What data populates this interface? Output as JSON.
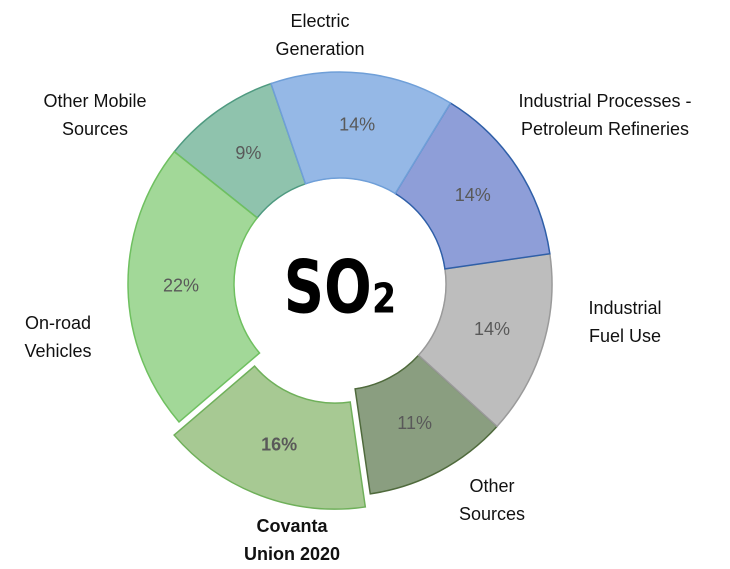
{
  "chart_data": {
    "type": "donut",
    "center_label": "SO₂",
    "categories": [
      "Electric Generation",
      "Industrial Processes - Petroleum Refineries",
      "Industrial Fuel Use",
      "Other Sources",
      "Covanta Union 2020",
      "On-road Vehicles",
      "Other Mobile Sources"
    ],
    "values": [
      14,
      14,
      14,
      11,
      16,
      22,
      9
    ],
    "value_labels": [
      "14%",
      "14%",
      "14%",
      "11%",
      "16%",
      "22%",
      "9%"
    ],
    "colors": [
      "#95b8e6",
      "#8e9ed8",
      "#bdbdbd",
      "#8a9e80",
      "#a7c993",
      "#a2d898",
      "#8fc3ad"
    ],
    "explode": 4
  }
}
